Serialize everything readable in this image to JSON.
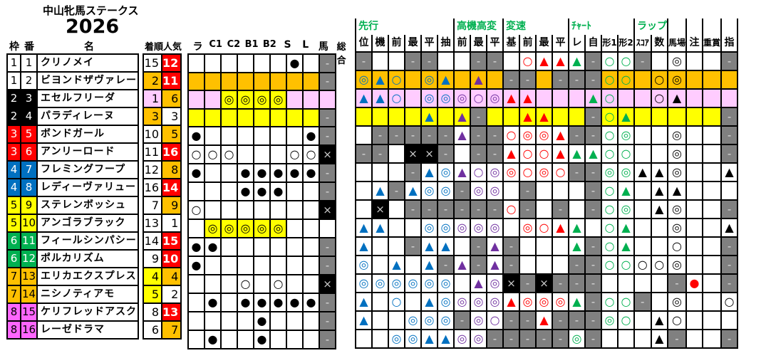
{
  "title": "中山牝馬ステークス",
  "year": "2026",
  "headers": {
    "frame": "枠",
    "num": "番",
    "name": "名",
    "finish": "着順",
    "pop": "人気"
  },
  "mid_headers": [
    "ラ",
    "C1",
    "C2",
    "B1",
    "B2",
    "S",
    "L",
    "馬",
    "総合"
  ],
  "right_groups": [
    {
      "label": "先行",
      "span": 6
    },
    {
      "label": "高機高変",
      "span": 3
    },
    {
      "label": "変速",
      "span": 4
    },
    {
      "label": "ﾁｬｰﾄ",
      "span": 4
    },
    {
      "label": "ラップ",
      "span": 2
    },
    {
      "label": "",
      "span": 1
    },
    {
      "label": "",
      "span": 1
    },
    {
      "label": "",
      "span": 1
    },
    {
      "label": "",
      "span": 1
    }
  ],
  "right_headers": [
    "位",
    "機",
    "前",
    "最",
    "平",
    "抽",
    "前",
    "最",
    "平",
    "基",
    "前",
    "最",
    "平",
    "レ",
    "自",
    "形1",
    "形2",
    "ｽｺｱ",
    "数",
    "馬場",
    "注",
    "重賞",
    "指"
  ],
  "colors": {
    "frame": {
      "1": "#ffffff",
      "2": "#000000",
      "3": "#ff0000",
      "4": "#0070c0",
      "5": "#ffff00",
      "6": "#00b050",
      "7": "#ffc000",
      "8": "#ff66ff"
    },
    "orange": "#ffc000",
    "pink": "#ffccff",
    "yellow": "#ffff00",
    "red": "#ff0000"
  },
  "horses": [
    {
      "frame": 1,
      "num": 1,
      "name": "クリノメイ",
      "finish": 15,
      "pop": 12,
      "row_bg": "",
      "mid": [
        "",
        "",
        "",
        "",
        "",
        "",
        "●",
        "",
        "-"
      ],
      "right": [
        "-",
        "",
        "",
        "-",
        "-",
        "",
        "",
        "-",
        "-",
        "",
        "○r",
        "▲r",
        "▲r",
        "▲g",
        "-",
        "○g",
        "○g",
        "-",
        "",
        "◎k",
        "",
        "",
        "-"
      ]
    },
    {
      "frame": 1,
      "num": 2,
      "name": "ビヨンドザヴァレー",
      "finish": 2,
      "pop": 11,
      "row_bg": "orange",
      "mid": [
        "",
        "",
        "",
        "",
        "",
        "",
        "",
        "",
        "-"
      ],
      "right": [
        "◎b",
        "▲b",
        "○b",
        "",
        "◎b",
        "▲b",
        "",
        "▲p",
        "",
        "-",
        "-",
        "",
        "-",
        "-",
        "-",
        "○g",
        "○g",
        "",
        "○k",
        "◎k",
        "",
        "",
        ""
      ]
    },
    {
      "frame": 2,
      "num": 3,
      "name": "エセルフリーダ",
      "finish": 1,
      "pop": 6,
      "row_bg": "pink",
      "mid": [
        "",
        "",
        "◎",
        "◎",
        "◎",
        "◎",
        "",
        "",
        ""
      ],
      "right": [
        "▲b",
        "▲b",
        "○b",
        "",
        "◎b",
        "◎b",
        "◎p",
        "○p",
        "◎p",
        "▲r",
        "▲r",
        "",
        "",
        "",
        "▲g",
        "○g",
        "",
        "",
        "○k",
        "▲k",
        "",
        "",
        ""
      ]
    },
    {
      "frame": 2,
      "num": 4,
      "name": "パラディレーヌ",
      "finish": 3,
      "pop": 3,
      "row_bg": "yellow",
      "mid": [
        "",
        "",
        "",
        "",
        "",
        "",
        "",
        "",
        "-"
      ],
      "right": [
        "",
        "",
        "",
        "",
        "▲b",
        "",
        "▲p",
        "-",
        "",
        "",
        "▲r",
        "▲r",
        "",
        "",
        "-",
        "○g",
        "▲g",
        "",
        "",
        "",
        "",
        "",
        "-"
      ]
    },
    {
      "frame": 3,
      "num": 5,
      "name": "ボンドガール",
      "finish": 10,
      "pop": 5,
      "row_bg": "",
      "mid": [
        "●",
        "",
        "",
        "",
        "",
        "",
        "",
        "●",
        "-"
      ],
      "right": [
        "",
        "-",
        "-",
        "-",
        "-",
        "-",
        "▲p",
        "-",
        "-",
        "○r",
        "◎r",
        "◎r",
        "▲r",
        "-",
        "-",
        "○g",
        "◎g",
        "",
        "",
        "◎k",
        "",
        "",
        "-"
      ]
    },
    {
      "frame": 3,
      "num": 6,
      "name": "アンリーロード",
      "finish": 11,
      "pop": 16,
      "row_bg": "",
      "mid": [
        "○",
        "○",
        "○",
        "",
        "",
        "",
        "○",
        "○",
        "x"
      ],
      "right": [
        "-",
        "-",
        "",
        "x",
        "x",
        "-",
        "",
        "-",
        "-",
        "▲r",
        "○r",
        "○r",
        "▲r",
        "▲g",
        "▲g",
        "○g",
        "○g",
        "",
        "",
        "◎k",
        "",
        "",
        "-"
      ]
    },
    {
      "frame": 4,
      "num": 7,
      "name": "フレミングフープ",
      "finish": 12,
      "pop": 8,
      "row_bg": "",
      "mid": [
        "●",
        "",
        "",
        "●",
        "●",
        "●",
        "●",
        "●",
        "-"
      ],
      "right": [
        "",
        "",
        "",
        "-",
        "▲b",
        "◎b",
        "▲p",
        "○p",
        "◎p",
        "◎r",
        "○r",
        "◎r",
        "○r",
        "-",
        "-",
        "◎g",
        "◎g",
        "▲k",
        "▲k",
        "◎k",
        "",
        "",
        "▲k"
      ]
    },
    {
      "frame": 4,
      "num": 8,
      "name": "レディーヴァリュー",
      "finish": 16,
      "pop": 14,
      "row_bg": "",
      "mid": [
        "",
        "",
        "",
        "●",
        "●",
        "●",
        "",
        "",
        "-"
      ],
      "right": [
        "",
        "▲b",
        "-",
        "▲b",
        "◎b",
        "◎b",
        "-",
        "◎p",
        "◎p",
        "",
        "-",
        "",
        "",
        "",
        "-",
        "○g",
        "▲g",
        "",
        "▲k",
        "▲k",
        "",
        "",
        ""
      ]
    },
    {
      "frame": 5,
      "num": 9,
      "name": "ステレンボッシュ",
      "finish": 7,
      "pop": 9,
      "row_bg": "",
      "mid": [
        "○",
        "",
        "",
        "",
        "",
        "",
        "",
        "",
        "x"
      ],
      "right": [
        "",
        "x",
        "",
        "-",
        "-",
        "-",
        "-",
        "-",
        "-",
        "○r",
        "-",
        "",
        "-",
        "",
        "-",
        "○g",
        "◎g",
        "",
        "▲k",
        "◎k",
        "",
        "",
        "-"
      ]
    },
    {
      "frame": 5,
      "num": 10,
      "name": "アンゴラブラック",
      "finish": 13,
      "pop": 1,
      "row_bg": "",
      "mid": [
        "",
        "◎",
        "◎",
        "◎",
        "◎",
        "◎",
        "",
        "",
        ""
      ],
      "right": [
        "▲b",
        "▲b",
        "",
        "",
        "◎b",
        "◎b",
        "◎p",
        "◎p",
        "◎p",
        "",
        "◎r",
        "○r",
        "▲r",
        "▲g",
        "",
        "○g",
        "▲g",
        "",
        "",
        "◎k",
        "",
        "",
        "▲k"
      ]
    },
    {
      "frame": 6,
      "num": 11,
      "name": "フィールシンパシー",
      "finish": 14,
      "pop": 15,
      "row_bg": "",
      "mid": [
        "●",
        "●",
        "",
        "",
        "",
        "",
        "",
        "",
        "-"
      ],
      "right": [
        "▲b",
        "",
        "",
        "-",
        "▲b",
        "▲b",
        "",
        "-",
        "▲p",
        "-",
        "",
        "",
        "",
        "▲g",
        "-",
        "○g",
        "▲g",
        "",
        "",
        "○k",
        "",
        "",
        "-"
      ]
    },
    {
      "frame": 6,
      "num": 12,
      "name": "ポルカリズム",
      "finish": 9,
      "pop": 10,
      "row_bg": "",
      "mid": [
        "●",
        "",
        "",
        "",
        "",
        "",
        "",
        "",
        "-"
      ],
      "right": [
        "◎b",
        "",
        "▲b",
        "",
        "▲b",
        "-",
        "▲p",
        "-",
        "▲p",
        "-",
        "",
        "",
        "",
        "-",
        "-",
        "○g",
        "○g",
        "○k",
        "○k",
        "◎k",
        "",
        "",
        "-"
      ]
    },
    {
      "frame": 7,
      "num": 13,
      "name": "エリカエクスプレス",
      "finish": 4,
      "pop": 4,
      "row_bg": "",
      "mid": [
        "",
        "",
        "",
        "○",
        "",
        "○",
        "",
        "",
        "x"
      ],
      "right": [
        "◎b",
        "◎b",
        "◎b",
        "◎b",
        "◎b",
        "◎b",
        "",
        "▲p",
        "◎p",
        "x",
        "-",
        "x",
        "-",
        "-",
        "-",
        "",
        "",
        "",
        "",
        "-",
        "●r",
        "",
        "-"
      ]
    },
    {
      "frame": 7,
      "num": 14,
      "name": "ニシノティアモ",
      "finish": 5,
      "pop": 2,
      "row_bg": "",
      "mid": [
        "",
        "●",
        "",
        "●",
        "●",
        "●",
        "●",
        "●",
        "-"
      ],
      "right": [
        "▲b",
        "",
        "○b",
        "",
        "▲b",
        "◎b",
        "◎p",
        "◎p",
        "◎p",
        "▲r",
        "◎r",
        "◎r",
        "◎r",
        "▲g",
        "-",
        "○g",
        "○g",
        "-",
        "",
        "◎k",
        "",
        "",
        "○k"
      ]
    },
    {
      "frame": 8,
      "num": 15,
      "name": "ケリフレッドアスク",
      "finish": 8,
      "pop": 13,
      "row_bg": "",
      "mid": [
        "",
        "",
        "",
        "",
        "●",
        "",
        "",
        "",
        "-"
      ],
      "right": [
        "▲b",
        "",
        "",
        "◎b",
        "◎b",
        "◎b",
        "-",
        "◎p",
        "○p",
        "-",
        "-",
        "▲r",
        "-",
        "-",
        "-",
        "◎g",
        "○g",
        "",
        "▲k",
        "○k",
        "",
        "",
        ""
      ]
    },
    {
      "frame": 8,
      "num": 16,
      "name": "レーゼドラマ",
      "finish": 6,
      "pop": 7,
      "row_bg": "",
      "mid": [
        "",
        "●",
        "",
        "",
        "●",
        "",
        "",
        "",
        "-"
      ],
      "right": [
        "",
        "",
        "◎b",
        "◎b",
        "▲b",
        "▲b",
        "◎p",
        "◎p",
        "-",
        "-",
        "-",
        "-",
        "-",
        "◎g",
        "-",
        "",
        "",
        "",
        "▲k",
        "-",
        "",
        "",
        "-"
      ]
    }
  ]
}
